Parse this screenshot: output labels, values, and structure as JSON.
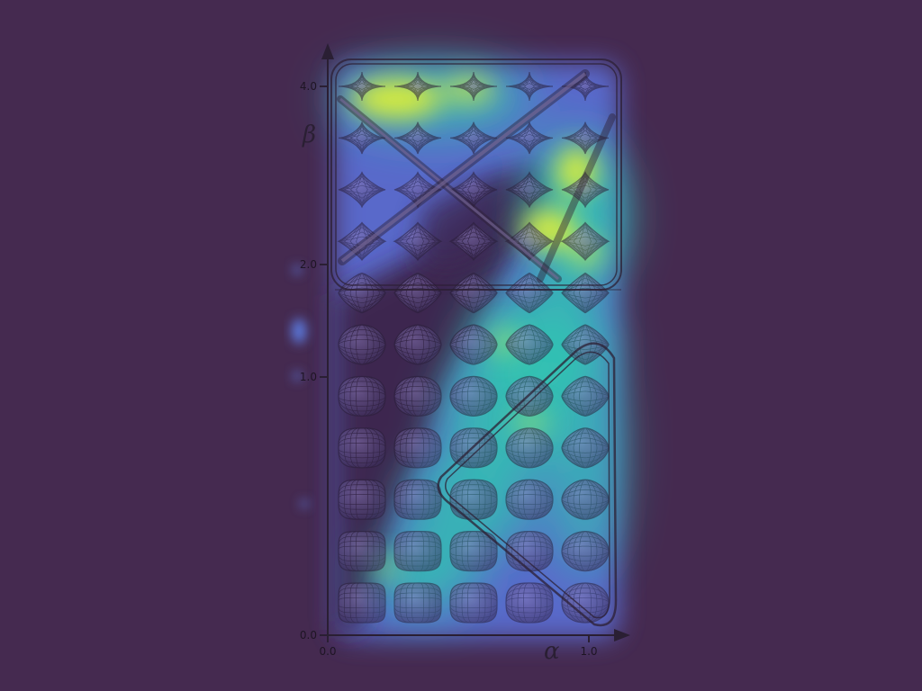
{
  "figure": {
    "x_axis": {
      "symbol": "α",
      "ticks": [
        "0.0",
        "1.0"
      ]
    },
    "y_axis": {
      "symbol": "β",
      "ticks": [
        "0.0",
        "1.0",
        "2.0",
        "4.0"
      ]
    }
  },
  "grid": {
    "rows": 11,
    "cols": 5
  },
  "colors": {
    "background": "#452a50",
    "frame": "#2c1f33",
    "heat_low": "#4b6bd6",
    "heat_mid": "#2fc9b0",
    "heat_high": "#d8ec3c",
    "shape_fill": "#5a4a8a",
    "shape_stroke": "#2a1f3a"
  },
  "overlay": {
    "type": "saliency-heatmap"
  }
}
